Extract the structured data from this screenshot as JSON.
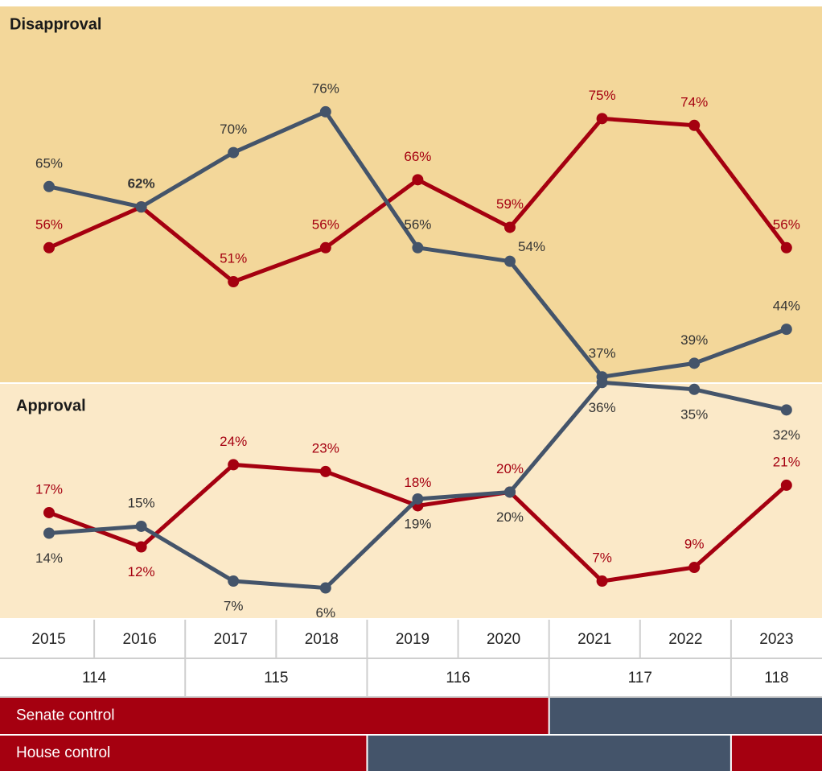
{
  "chart_data": [
    {
      "type": "line",
      "title": "Disapproval",
      "categories": [
        "2015",
        "2016",
        "2017",
        "2018",
        "2019",
        "2020",
        "2021",
        "2022",
        "2023"
      ],
      "ylim": [
        36.2,
        91.5
      ],
      "series": [
        {
          "color": "#a50010",
          "values": [
            56,
            62,
            51,
            56,
            66,
            59,
            75,
            74,
            56
          ],
          "value_labels": [
            "56%",
            null,
            "51%",
            "56%",
            "66%",
            "59%",
            "75%",
            "74%",
            "56%"
          ]
        },
        {
          "color": "#44546a",
          "values": [
            65,
            62,
            70,
            76,
            56,
            54,
            37,
            39,
            44
          ],
          "value_labels": [
            "65%",
            "62%",
            "70%",
            "76%",
            "56%",
            "54%",
            "37%",
            "39%",
            "44%"
          ]
        }
      ]
    },
    {
      "type": "line",
      "title": "Approval",
      "ylim": [
        1.6,
        35.8
      ],
      "series": [
        {
          "color": "#a50010",
          "values": [
            17,
            12,
            24,
            23,
            18,
            20,
            7,
            9,
            21
          ],
          "value_labels": [
            "17%",
            "12%",
            "24%",
            "23%",
            "18%",
            "20%",
            "7%",
            "9%",
            "21%"
          ]
        },
        {
          "color": "#44546a",
          "values": [
            14,
            15,
            7,
            6,
            19,
            20,
            36,
            35,
            32
          ],
          "value_labels": [
            "14%",
            "15%",
            "7%",
            "6%",
            "19%",
            "20%",
            "36%",
            "35%",
            "32%"
          ]
        }
      ]
    }
  ],
  "table": {
    "congress": [
      {
        "label": "114",
        "span": 2
      },
      {
        "label": "115",
        "span": 2
      },
      {
        "label": "116",
        "span": 2
      },
      {
        "label": "117",
        "span": 2
      },
      {
        "label": "118",
        "span": 1
      }
    ],
    "senate": {
      "label": "Senate control",
      "segments": [
        {
          "color": "#a50010",
          "span": 6
        },
        {
          "color": "#44546a",
          "span": 3
        }
      ]
    },
    "house": {
      "label": "House control",
      "segments": [
        {
          "color": "#a50010",
          "span": 4
        },
        {
          "color": "#44546a",
          "span": 4
        },
        {
          "color": "#a50010",
          "span": 1
        }
      ]
    }
  }
}
